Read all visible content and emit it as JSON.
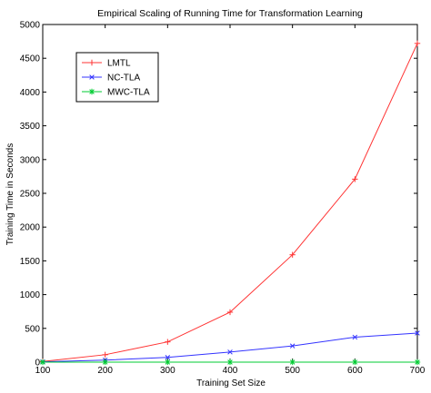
{
  "chart_data": {
    "type": "line",
    "title": "Empirical Scaling of Running Time for Transformation Learning",
    "xlabel": "Training Set Size",
    "ylabel": "Training Time in Seconds",
    "x": [
      100,
      200,
      300,
      400,
      500,
      600,
      700
    ],
    "xlim": [
      100,
      700
    ],
    "ylim": [
      0,
      5000
    ],
    "xticks": [
      "100",
      "200",
      "300",
      "400",
      "500",
      "600",
      "700"
    ],
    "yticks": [
      "0",
      "500",
      "1000",
      "1500",
      "2000",
      "2500",
      "3000",
      "3500",
      "4000",
      "4500",
      "5000"
    ],
    "grid": false,
    "legend_position": "top-left",
    "series": [
      {
        "name": "LMTL",
        "color": "#ff3333",
        "marker": "plus",
        "values": [
          10,
          110,
          300,
          740,
          1590,
          2710,
          4720
        ]
      },
      {
        "name": "NC-TLA",
        "color": "#3333ff",
        "marker": "x",
        "values": [
          5,
          30,
          70,
          150,
          240,
          370,
          430
        ]
      },
      {
        "name": "MWC-TLA",
        "color": "#00cc33",
        "marker": "star",
        "values": [
          0,
          0,
          0,
          0,
          0,
          0,
          0
        ]
      }
    ]
  }
}
